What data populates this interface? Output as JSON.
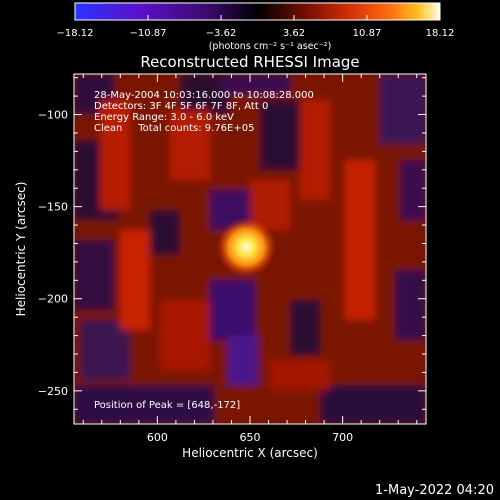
{
  "chart_data": {
    "type": "heatmap",
    "title": "Reconstructed RHESSI Image",
    "xlabel": "Heliocentric X (arcsec)",
    "ylabel": "Heliocentric Y (arcsec)",
    "xlim": [
      555,
      745
    ],
    "ylim": [
      -268,
      -78
    ],
    "x_ticks": [
      600,
      650,
      700
    ],
    "y_ticks": [
      -100,
      -150,
      -200,
      -250
    ],
    "peak": {
      "x": 648,
      "y": -172
    },
    "info_lines": [
      "28-May-2004 10:03:16.000 to 10:08:28.000",
      "Detectors: 3F 4F 5F 6F 7F 8F, Att 0",
      "Energy Range: 3.0 - 6.0 keV",
      "Clean     Total counts: 9.76E+05"
    ],
    "peak_label": "Position of Peak = [648,-172]",
    "colorbar": {
      "range": [
        -18.12,
        18.12
      ],
      "tick_labels": [
        "-18.12",
        "-10.87",
        "-3.62",
        "3.62",
        "10.87",
        "18.12"
      ],
      "unit_label": "(photons cm⁻² s⁻¹ asec⁻²)"
    },
    "colors": {
      "negative_dark": "#000000",
      "negative_mid": "#3c0a6e",
      "negative_end": "#2a35ff",
      "positive_mid": "#cc2a06",
      "positive_bright": "#ffa500",
      "positive_end": "#ffffe6"
    },
    "grid": false
  },
  "footer_date": "1-May-2022 04:20"
}
